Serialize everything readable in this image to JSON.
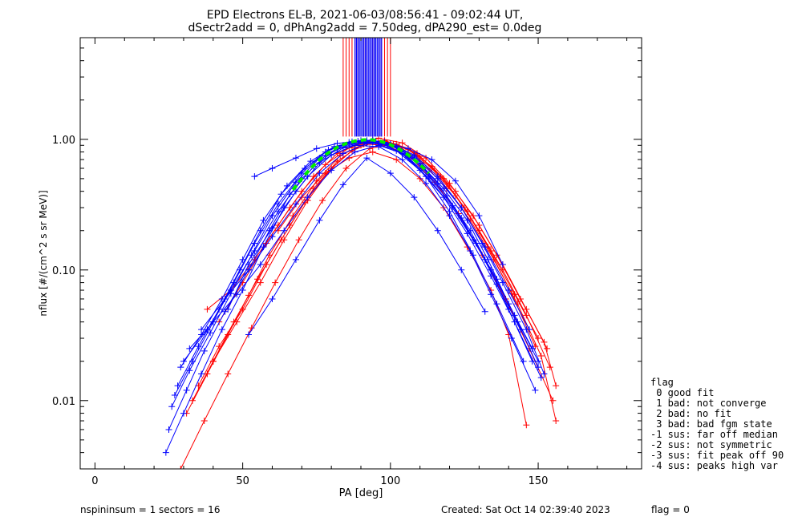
{
  "chart_data": {
    "type": "line",
    "title": "EPD Electrons EL-B, 2021-06-03/08:56:41 - 09:02:44 UT,",
    "subtitle": "dSectr2add = 0, dPhAng2add = 7.50deg, dPA290_est=   0.0deg",
    "xlabel": "PA [deg]",
    "ylabel": "nflux [#/(cm^2 s sr MeV)]",
    "xlim": [
      -5,
      185
    ],
    "ylim": [
      0.003,
      6
    ],
    "yscale": "log",
    "x_ticks": [
      0,
      50,
      100,
      150
    ],
    "x_tick_labels": [
      "0",
      "50",
      "100",
      "150"
    ],
    "y_ticks": [
      0.01,
      0.1,
      1.0
    ],
    "y_tick_labels": [
      "0.01",
      "0.10",
      "1.00"
    ],
    "colors": {
      "ascending": "#0000ff",
      "descending": "#ff0000",
      "fit": "#00ee00"
    },
    "series": [
      {
        "color": "#0000ff",
        "x": [
          25,
          31,
          37,
          44,
          52,
          59,
          66,
          74,
          82,
          91,
          99,
          106,
          113,
          121,
          128,
          136,
          143,
          150
        ],
        "y": [
          0.006,
          0.012,
          0.024,
          0.048,
          0.1,
          0.2,
          0.38,
          0.62,
          0.85,
          0.96,
          0.9,
          0.72,
          0.5,
          0.3,
          0.17,
          0.085,
          0.04,
          0.018
        ]
      },
      {
        "color": "#0000ff",
        "x": [
          27,
          33,
          40,
          47,
          54,
          62,
          70,
          78,
          86,
          94,
          102,
          110,
          118,
          126,
          133,
          140,
          148
        ],
        "y": [
          0.011,
          0.02,
          0.04,
          0.08,
          0.16,
          0.32,
          0.55,
          0.8,
          0.95,
          0.99,
          0.88,
          0.65,
          0.42,
          0.24,
          0.12,
          0.055,
          0.025
        ]
      },
      {
        "color": "#0000ff",
        "x": [
          24,
          30,
          36,
          43,
          50,
          57,
          64,
          72,
          80,
          88,
          96,
          104,
          112,
          120,
          127,
          134,
          141,
          149
        ],
        "y": [
          0.004,
          0.008,
          0.016,
          0.035,
          0.07,
          0.15,
          0.3,
          0.52,
          0.76,
          0.9,
          0.88,
          0.7,
          0.46,
          0.26,
          0.14,
          0.065,
          0.03,
          0.012
        ]
      },
      {
        "color": "#0000ff",
        "x": [
          28,
          35,
          42,
          49,
          56,
          63,
          71,
          79,
          87,
          95,
          103,
          111,
          119,
          127,
          134,
          142,
          150
        ],
        "y": [
          0.013,
          0.026,
          0.05,
          0.1,
          0.2,
          0.38,
          0.6,
          0.83,
          0.96,
          0.97,
          0.85,
          0.6,
          0.37,
          0.2,
          0.1,
          0.045,
          0.02
        ]
      },
      {
        "color": "#0000ff",
        "x": [
          26,
          32,
          39,
          46,
          53,
          60,
          68,
          76,
          84,
          92,
          100,
          108,
          116,
          124,
          131,
          138,
          146,
          152
        ],
        "y": [
          0.009,
          0.017,
          0.033,
          0.066,
          0.13,
          0.26,
          0.47,
          0.72,
          0.9,
          0.98,
          0.92,
          0.74,
          0.5,
          0.3,
          0.16,
          0.08,
          0.035,
          0.016
        ]
      },
      {
        "color": "#0000ff",
        "x": [
          29,
          36,
          43,
          50,
          57,
          65,
          73,
          81,
          89,
          97,
          105,
          113,
          121,
          129,
          136,
          144
        ],
        "y": [
          0.018,
          0.032,
          0.06,
          0.12,
          0.24,
          0.44,
          0.68,
          0.88,
          0.97,
          0.93,
          0.76,
          0.52,
          0.31,
          0.16,
          0.078,
          0.035
        ]
      },
      {
        "color": "#0000ff",
        "x": [
          30,
          38,
          46,
          54,
          62,
          70,
          78,
          86,
          94,
          102,
          110,
          118,
          126,
          134,
          142,
          151
        ],
        "y": [
          0.02,
          0.035,
          0.07,
          0.14,
          0.28,
          0.5,
          0.75,
          0.92,
          0.95,
          0.82,
          0.58,
          0.36,
          0.19,
          0.09,
          0.04,
          0.015
        ]
      },
      {
        "color": "#0000ff",
        "x": [
          32,
          40,
          48,
          56,
          64,
          72,
          80,
          88,
          96,
          104,
          112,
          120,
          128,
          136,
          145
        ],
        "y": [
          0.025,
          0.04,
          0.065,
          0.11,
          0.2,
          0.36,
          0.58,
          0.8,
          0.9,
          0.78,
          0.52,
          0.28,
          0.13,
          0.055,
          0.02
        ]
      },
      {
        "color": "#0000ff",
        "x": [
          54,
          60,
          68,
          75,
          82,
          90,
          98,
          106,
          114,
          122,
          130,
          138
        ],
        "y": [
          0.52,
          0.6,
          0.72,
          0.85,
          0.93,
          0.98,
          0.95,
          0.85,
          0.7,
          0.48,
          0.26,
          0.11
        ]
      },
      {
        "color": "#0000ff",
        "x": [
          45,
          52,
          60,
          68,
          76,
          84,
          92,
          100,
          108,
          116,
          124,
          132,
          140,
          148
        ],
        "y": [
          0.05,
          0.11,
          0.21,
          0.4,
          0.66,
          0.86,
          0.95,
          0.9,
          0.72,
          0.46,
          0.25,
          0.12,
          0.05,
          0.02
        ]
      },
      {
        "color": "#0000ff",
        "x": [
          52,
          60,
          68,
          76,
          84,
          92,
          100,
          108,
          116,
          124,
          132
        ],
        "y": [
          0.032,
          0.06,
          0.12,
          0.24,
          0.45,
          0.72,
          0.55,
          0.36,
          0.2,
          0.1,
          0.048
        ]
      },
      {
        "color": "#0000ff",
        "x": [
          36,
          44,
          52,
          60,
          68,
          76,
          84,
          92,
          100,
          108,
          116,
          124,
          132,
          140,
          147
        ],
        "y": [
          0.035,
          0.06,
          0.1,
          0.18,
          0.32,
          0.55,
          0.78,
          0.93,
          0.92,
          0.76,
          0.52,
          0.3,
          0.15,
          0.07,
          0.035
        ]
      },
      {
        "color": "#ff0000",
        "x": [
          31,
          38,
          45,
          52,
          59,
          67,
          75,
          83,
          91,
          99,
          107,
          115,
          123,
          131,
          139,
          147,
          155
        ],
        "y": [
          0.008,
          0.016,
          0.032,
          0.064,
          0.13,
          0.26,
          0.48,
          0.75,
          0.92,
          0.9,
          0.72,
          0.47,
          0.27,
          0.13,
          0.06,
          0.025,
          0.01
        ]
      },
      {
        "color": "#ff0000",
        "x": [
          33,
          40,
          47,
          55,
          63,
          71,
          79,
          87,
          95,
          103,
          111,
          119,
          127,
          135,
          143,
          151,
          156
        ],
        "y": [
          0.01,
          0.02,
          0.04,
          0.085,
          0.17,
          0.33,
          0.57,
          0.82,
          0.96,
          0.88,
          0.66,
          0.42,
          0.24,
          0.12,
          0.055,
          0.022,
          0.007
        ]
      },
      {
        "color": "#ff0000",
        "x": [
          35,
          42,
          50,
          58,
          66,
          74,
          82,
          90,
          98,
          106,
          114,
          122,
          130,
          138,
          146,
          154
        ],
        "y": [
          0.013,
          0.026,
          0.05,
          0.11,
          0.22,
          0.42,
          0.68,
          0.9,
          0.97,
          0.84,
          0.6,
          0.37,
          0.2,
          0.1,
          0.045,
          0.018
        ]
      },
      {
        "color": "#ff0000",
        "x": [
          29,
          37,
          45,
          53,
          61,
          69,
          77,
          85,
          93,
          101,
          109,
          117,
          125,
          133,
          141,
          149
        ],
        "y": [
          0.003,
          0.007,
          0.016,
          0.036,
          0.08,
          0.17,
          0.34,
          0.6,
          0.85,
          0.92,
          0.78,
          0.52,
          0.3,
          0.15,
          0.066,
          0.026
        ]
      },
      {
        "color": "#ff0000",
        "x": [
          40,
          48,
          56,
          64,
          72,
          80,
          88,
          96,
          104,
          112,
          120,
          128,
          136,
          144,
          152,
          156
        ],
        "y": [
          0.02,
          0.04,
          0.08,
          0.17,
          0.34,
          0.6,
          0.86,
          1.02,
          0.94,
          0.72,
          0.46,
          0.26,
          0.13,
          0.06,
          0.028,
          0.013
        ]
      },
      {
        "color": "#ff0000",
        "x": [
          38,
          46,
          54,
          62,
          70,
          78,
          86,
          94,
          102,
          110,
          118,
          126,
          134,
          142,
          150
        ],
        "y": [
          0.05,
          0.07,
          0.12,
          0.22,
          0.4,
          0.64,
          0.86,
          0.98,
          0.92,
          0.74,
          0.5,
          0.28,
          0.14,
          0.065,
          0.03
        ]
      },
      {
        "color": "#ff0000",
        "x": [
          62,
          70,
          78,
          86,
          94,
          102,
          110,
          118,
          126,
          134,
          140,
          146
        ],
        "y": [
          0.2,
          0.36,
          0.55,
          0.72,
          0.8,
          0.7,
          0.5,
          0.3,
          0.15,
          0.07,
          0.032,
          0.0065
        ]
      },
      {
        "color": "#ff0000",
        "x": [
          42,
          50,
          58,
          66,
          74,
          82,
          90,
          98,
          106,
          114,
          122,
          130,
          138,
          146,
          153
        ],
        "y": [
          0.04,
          0.08,
          0.16,
          0.3,
          0.52,
          0.78,
          0.95,
          0.98,
          0.85,
          0.62,
          0.4,
          0.22,
          0.11,
          0.05,
          0.025
        ]
      }
    ],
    "spikes": {
      "red_x": [
        84,
        85,
        86,
        87,
        88,
        89,
        90,
        91,
        92,
        93,
        94,
        95,
        96,
        97,
        98,
        99,
        100
      ],
      "blue_x": [
        88,
        88.5,
        89,
        89.5,
        90,
        90.5,
        91,
        91.5,
        92,
        92.5,
        93,
        93.5,
        94,
        94.5,
        95,
        95.5,
        96,
        96.5,
        97
      ],
      "y_bottom": 1.05
    },
    "fit": {
      "x": [
        67,
        70,
        73,
        76,
        79,
        82,
        85,
        88,
        91,
        94,
        97,
        100,
        103,
        106,
        109,
        112,
        113
      ],
      "y": [
        0.41,
        0.5,
        0.6,
        0.7,
        0.79,
        0.87,
        0.93,
        0.97,
        0.99,
        0.99,
        0.96,
        0.91,
        0.84,
        0.76,
        0.67,
        0.58,
        0.55
      ]
    }
  },
  "legend": {
    "title": "flag",
    "items": [
      " 0 good fit",
      " 1 bad: not converge",
      " 2 bad: no fit",
      " 3 bad: bad fgm state",
      "-1 sus: far off median",
      "-2 sus: not symmetric",
      "-3 sus: fit peak off 90",
      "-4 sus: peaks high var"
    ]
  },
  "footer": {
    "left": "nspininsum =  1  sectors = 16",
    "center": "Created: Sat Oct 14 02:39:40 2023",
    "right": "flag = 0"
  }
}
